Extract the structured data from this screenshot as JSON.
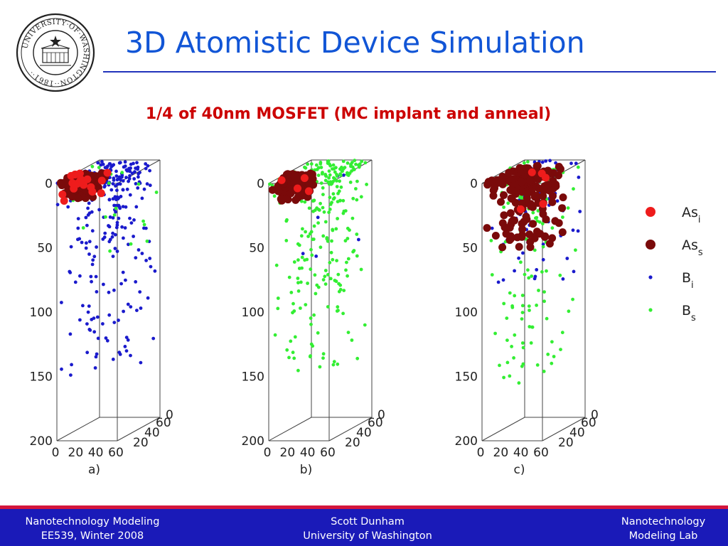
{
  "slide": {
    "title": "3D Atomistic Device Simulation",
    "subtitle": "1/4 of 40nm MOSFET (MC implant and anneal)",
    "colors": {
      "title": "#1155d6",
      "subtitle": "#cc0000",
      "footer_bg": "#1a1ab8",
      "footer_stripe": "#d4163c"
    }
  },
  "logo": {
    "name": "university-of-washington-seal-icon",
    "text": "UNIVERSITY·OF·WASHINGTON·1861"
  },
  "footer": {
    "left_line1": "Nanotechnology Modeling",
    "left_line2": "EE539, Winter 2008",
    "center_line1": "Scott Dunham",
    "center_line2": "University of Washington",
    "right_line1": "Nanotechnology",
    "right_line2": "Modeling Lab"
  },
  "chart_data": [
    {
      "type": "scatter",
      "panel_label": "a)",
      "zlim": [
        0,
        200
      ],
      "xlim": [
        0,
        60
      ],
      "ylim": [
        0,
        60
      ],
      "z_ticks": [
        "0",
        "50",
        "100",
        "150",
        "200"
      ],
      "x_ticks": [
        "0",
        "20",
        "40",
        "60"
      ],
      "y_ticks": [
        "0",
        "20",
        "40",
        "60"
      ],
      "series": [
        {
          "name": "As_i",
          "count": 20,
          "x_range": [
            0,
            35
          ],
          "y_range": [
            0,
            30
          ],
          "depth_range": [
            0,
            16
          ],
          "spread": 2.2
        },
        {
          "name": "As_s",
          "count": 110,
          "x_range": [
            0,
            32
          ],
          "y_range": [
            0,
            28
          ],
          "depth_range": [
            0,
            14
          ],
          "spread": 2.0
        },
        {
          "name": "B_i",
          "count": 280,
          "x_range": [
            0,
            60
          ],
          "y_range": [
            0,
            60
          ],
          "depth_range": [
            0,
            155
          ],
          "spread": 3.0
        },
        {
          "name": "B_s",
          "count": 22,
          "x_range": [
            0,
            60
          ],
          "y_range": [
            0,
            60
          ],
          "depth_range": [
            0,
            70
          ],
          "spread": 2.0
        }
      ]
    },
    {
      "type": "scatter",
      "panel_label": "b)",
      "zlim": [
        0,
        200
      ],
      "xlim": [
        0,
        60
      ],
      "ylim": [
        0,
        60
      ],
      "z_ticks": [
        "0",
        "50",
        "100",
        "150",
        "200"
      ],
      "x_ticks": [
        "0",
        "20",
        "40",
        "60"
      ],
      "y_ticks": [
        "0",
        "20",
        "40",
        "60"
      ],
      "series": [
        {
          "name": "As_i",
          "count": 4,
          "x_range": [
            0,
            30
          ],
          "y_range": [
            0,
            28
          ],
          "depth_range": [
            0,
            15
          ],
          "spread": 2.0
        },
        {
          "name": "As_s",
          "count": 120,
          "x_range": [
            0,
            30
          ],
          "y_range": [
            0,
            26
          ],
          "depth_range": [
            0,
            15
          ],
          "spread": 2.0
        },
        {
          "name": "B_i",
          "count": 6,
          "x_range": [
            0,
            60
          ],
          "y_range": [
            0,
            60
          ],
          "depth_range": [
            0,
            60
          ],
          "spread": 2.0
        },
        {
          "name": "B_s",
          "count": 300,
          "x_range": [
            0,
            60
          ],
          "y_range": [
            0,
            60
          ],
          "depth_range": [
            0,
            155
          ],
          "spread": 3.0
        }
      ]
    },
    {
      "type": "scatter",
      "panel_label": "c)",
      "zlim": [
        0,
        200
      ],
      "xlim": [
        0,
        60
      ],
      "ylim": [
        0,
        60
      ],
      "z_ticks": [
        "0",
        "50",
        "100",
        "150",
        "200"
      ],
      "x_ticks": [
        "0",
        "20",
        "40",
        "60"
      ],
      "y_ticks": [
        "0",
        "20",
        "40",
        "60"
      ],
      "series": [
        {
          "name": "As_i",
          "count": 5,
          "x_range": [
            0,
            50
          ],
          "y_range": [
            0,
            50
          ],
          "depth_range": [
            0,
            40
          ],
          "spread": 2.0
        },
        {
          "name": "As_s",
          "count": 170,
          "x_range": [
            0,
            55
          ],
          "y_range": [
            0,
            45
          ],
          "depth_range": [
            0,
            55
          ],
          "spread": 2.8
        },
        {
          "name": "B_i",
          "count": 90,
          "x_range": [
            0,
            60
          ],
          "y_range": [
            0,
            60
          ],
          "depth_range": [
            0,
            90
          ],
          "spread": 2.0
        },
        {
          "name": "B_s",
          "count": 140,
          "x_range": [
            0,
            60
          ],
          "y_range": [
            0,
            60
          ],
          "depth_range": [
            0,
            160
          ],
          "spread": 2.0
        }
      ]
    }
  ],
  "legend": {
    "placement": "right",
    "items": [
      {
        "species": "As",
        "sub": "i",
        "color": "#ee1c1c",
        "marker": "large-dot"
      },
      {
        "species": "As",
        "sub": "s",
        "color": "#7a0a0a",
        "marker": "large-dot"
      },
      {
        "species": "B",
        "sub": "i",
        "color": "#1a1acc",
        "marker": "small-dot"
      },
      {
        "species": "B",
        "sub": "s",
        "color": "#33ee33",
        "marker": "small-dot"
      }
    ]
  }
}
